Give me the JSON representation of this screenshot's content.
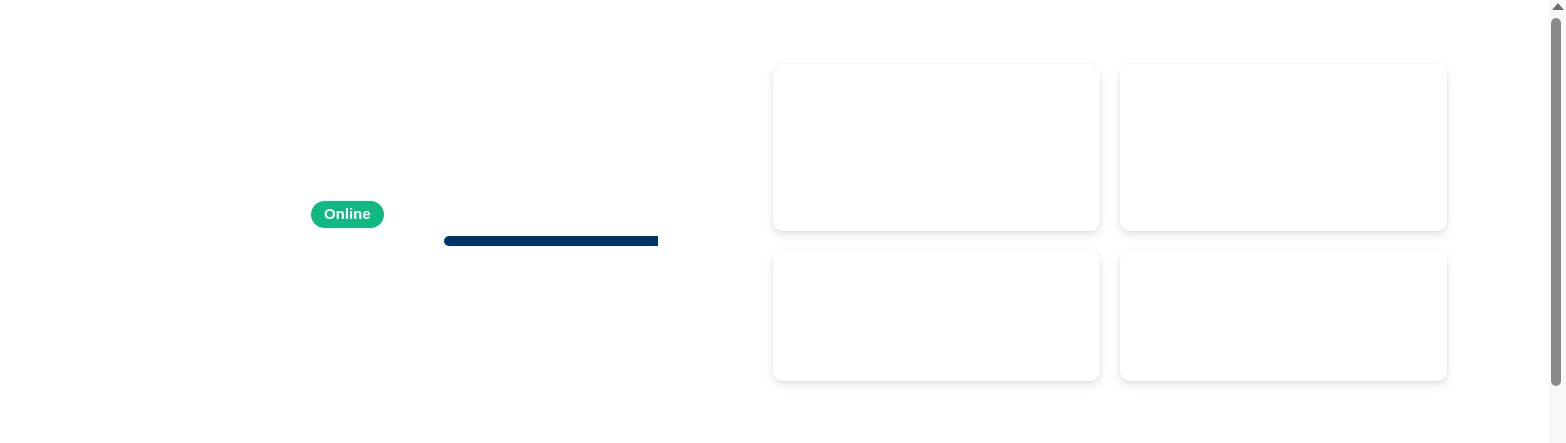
{
  "status": {
    "label": "Online",
    "color": "#10b981"
  },
  "progress": {
    "value": 1.0,
    "color": "#003366"
  },
  "cards": [
    {
      "id": "card-1"
    },
    {
      "id": "card-2"
    },
    {
      "id": "card-3"
    },
    {
      "id": "card-4"
    }
  ]
}
